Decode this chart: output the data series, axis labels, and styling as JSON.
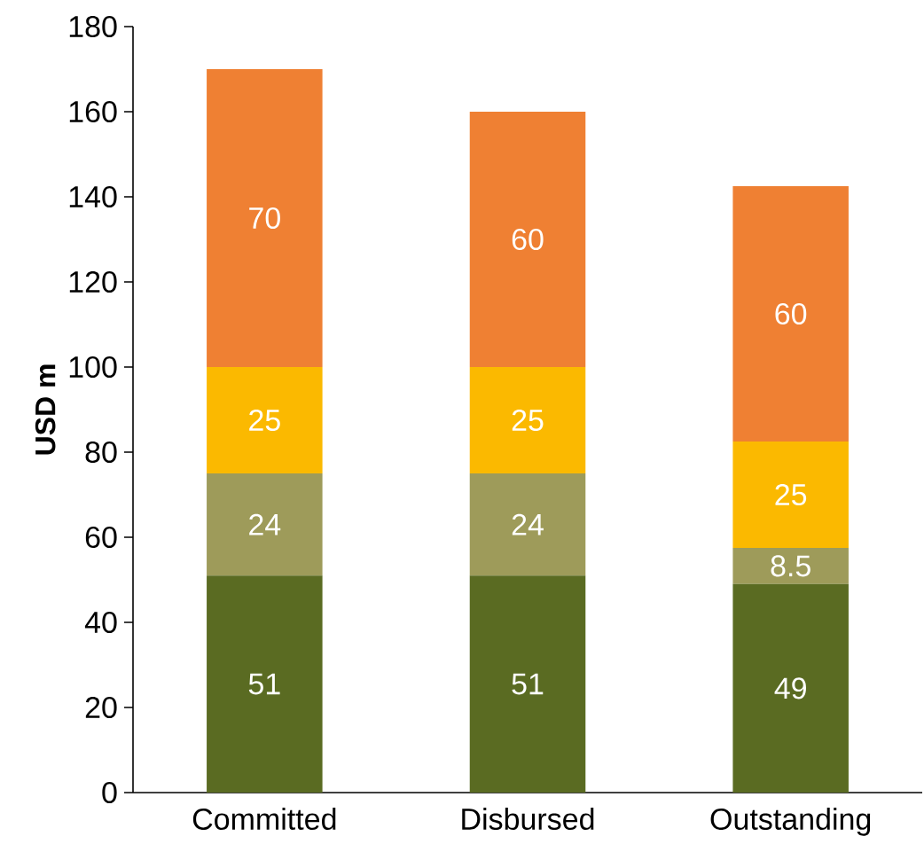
{
  "chart_data": {
    "type": "bar",
    "stacked": true,
    "ylabel": "USD m",
    "categories": [
      "Committed",
      "Disbursed",
      "Outstanding"
    ],
    "series": [
      {
        "color": "#5a6b22",
        "values": [
          51,
          51,
          49
        ]
      },
      {
        "color": "#9e9b5a",
        "values": [
          24,
          24,
          8.5
        ]
      },
      {
        "color": "#fbb900",
        "values": [
          25,
          25,
          25
        ]
      },
      {
        "color": "#ef8033",
        "values": [
          70,
          60,
          60
        ]
      }
    ],
    "ylim": [
      0,
      180
    ],
    "yticks": [
      0,
      20,
      40,
      60,
      80,
      100,
      120,
      140,
      160,
      180
    ],
    "data_labels": true
  }
}
